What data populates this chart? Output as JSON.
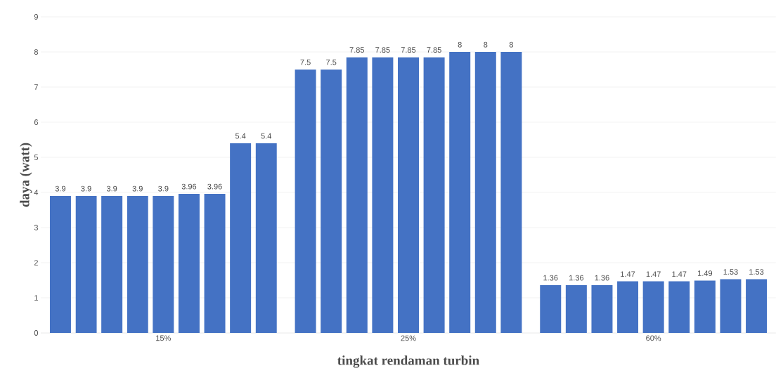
{
  "chart_data": {
    "type": "bar",
    "xlabel": "tingkat rendaman turbin",
    "ylabel": "daya (watt)",
    "categories": [
      "15%",
      "25%",
      "60%"
    ],
    "series": [
      {
        "color": "#4472c4",
        "values": [
          3.9,
          7.5,
          1.36
        ]
      },
      {
        "color": "#4472c4",
        "values": [
          3.9,
          7.5,
          1.36
        ]
      },
      {
        "color": "#4472c4",
        "values": [
          3.9,
          7.85,
          1.36
        ]
      },
      {
        "color": "#4472c4",
        "values": [
          3.9,
          7.85,
          1.47
        ]
      },
      {
        "color": "#4472c4",
        "values": [
          3.9,
          7.85,
          1.47
        ]
      },
      {
        "color": "#4472c4",
        "values": [
          3.96,
          7.85,
          1.47
        ]
      },
      {
        "color": "#4472c4",
        "values": [
          3.96,
          8,
          1.49
        ]
      },
      {
        "color": "#4472c4",
        "values": [
          5.4,
          8,
          1.53
        ]
      },
      {
        "color": "#4472c4",
        "values": [
          5.4,
          8,
          1.53
        ]
      }
    ],
    "ylim": [
      0,
      9
    ],
    "yticks": [
      0,
      1,
      2,
      3,
      4,
      5,
      6,
      7,
      8,
      9
    ],
    "grid": "y",
    "data_labels": true
  }
}
